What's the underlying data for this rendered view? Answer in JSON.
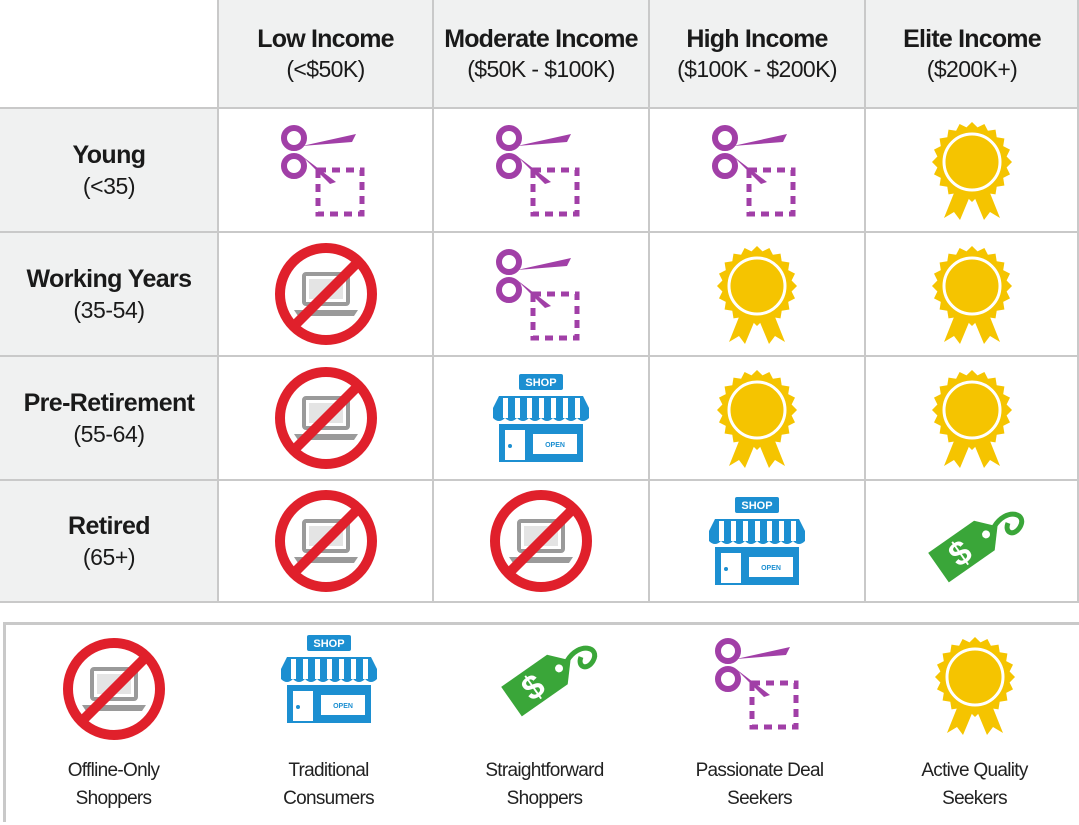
{
  "columns": [
    {
      "title": "Low Income",
      "sub": "(<$50K)"
    },
    {
      "title": "Moderate Income",
      "sub": "($50K - $100K)"
    },
    {
      "title": "High Income",
      "sub": "($100K - $200K)"
    },
    {
      "title": "Elite Income",
      "sub": "($200K+)"
    }
  ],
  "rows": [
    {
      "title": "Young",
      "sub": "(<35)"
    },
    {
      "title": "Working Years",
      "sub": "(35-54)"
    },
    {
      "title": "Pre-Retirement",
      "sub": "(55-64)"
    },
    {
      "title": "Retired",
      "sub": "(65+)"
    }
  ],
  "matrix": [
    [
      "passionate-deal-seeker-icon",
      "passionate-deal-seeker-icon",
      "passionate-deal-seeker-icon",
      "active-quality-seeker-icon"
    ],
    [
      "offline-only-shopper-icon",
      "passionate-deal-seeker-icon",
      "active-quality-seeker-icon",
      "active-quality-seeker-icon"
    ],
    [
      "offline-only-shopper-icon",
      "traditional-consumer-icon",
      "active-quality-seeker-icon",
      "active-quality-seeker-icon"
    ],
    [
      "offline-only-shopper-icon",
      "offline-only-shopper-icon",
      "traditional-consumer-icon",
      "straightforward-shopper-icon"
    ]
  ],
  "legend": [
    {
      "icon": "offline-only-shopper-icon",
      "line1": "Offline-Only",
      "line2": "Shoppers"
    },
    {
      "icon": "traditional-consumer-icon",
      "line1": "Traditional",
      "line2": "Consumers"
    },
    {
      "icon": "straightforward-shopper-icon",
      "line1": "Straightforward",
      "line2": "Shoppers"
    },
    {
      "icon": "passionate-deal-seeker-icon",
      "line1": "Passionate Deal",
      "line2": "Seekers"
    },
    {
      "icon": "active-quality-seeker-icon",
      "line1": "Active Quality",
      "line2": "Seekers"
    }
  ],
  "icon_text": {
    "shop": "SHOP",
    "open": "OPEN",
    "dollar": "$"
  },
  "colors": {
    "header_bg": "#f0f1f1",
    "grid": "#c9c9c9",
    "no_red": "#e0202b",
    "scissors_purple": "#a13fa7",
    "shop_blue": "#1c8fd1",
    "tag_green": "#3aa639",
    "ribbon_gold": "#f5c400"
  }
}
